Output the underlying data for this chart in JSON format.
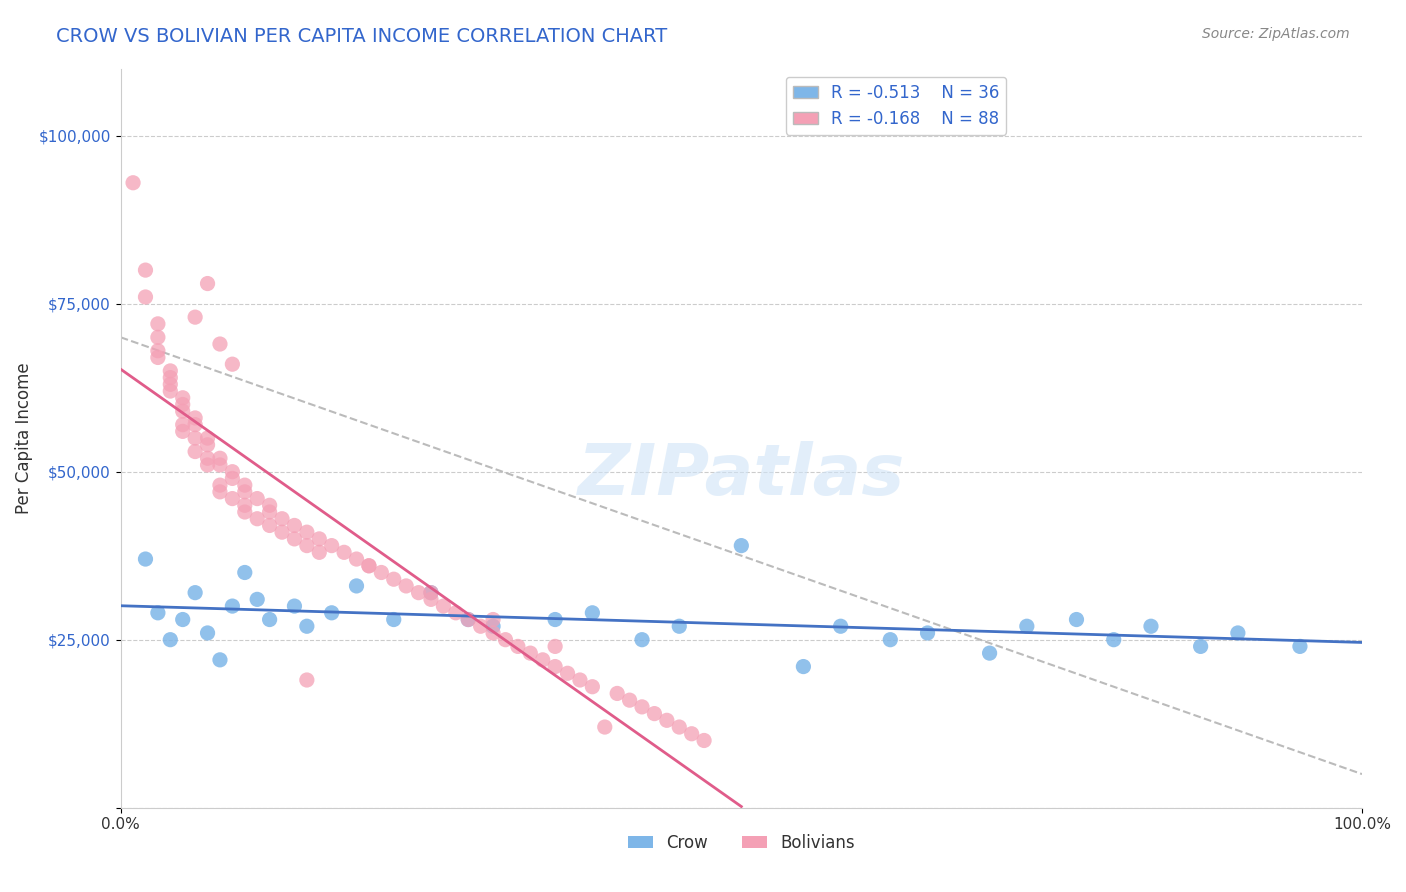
{
  "title": "CROW VS BOLIVIAN PER CAPITA INCOME CORRELATION CHART",
  "source_text": "Source: ZipAtlas.com",
  "xlabel": "",
  "ylabel": "Per Capita Income",
  "watermark": "ZIPatlas",
  "xlim": [
    0.0,
    100.0
  ],
  "ylim": [
    0,
    110000
  ],
  "yticks": [
    0,
    25000,
    50000,
    75000,
    100000
  ],
  "ytick_labels": [
    "",
    "$25,000",
    "$50,000",
    "$75,000",
    "$100,000"
  ],
  "xtick_labels": [
    "0.0%",
    "100.0%"
  ],
  "crow_color": "#7EB6E8",
  "bolivian_color": "#F4A0B5",
  "crow_line_color": "#4472C4",
  "bolivian_line_color": "#E05C8A",
  "dashed_line_color": "#BBBBBB",
  "legend_R_crow": "R = -0.513",
  "legend_N_crow": "N = 36",
  "legend_R_bolivian": "R = -0.168",
  "legend_N_bolivian": "N = 88",
  "crow_R": -0.513,
  "crow_N": 36,
  "bolivian_R": -0.168,
  "bolivian_N": 88,
  "crow_scatter_x": [
    2,
    3,
    4,
    5,
    6,
    7,
    8,
    9,
    10,
    11,
    12,
    14,
    15,
    17,
    19,
    22,
    25,
    28,
    30,
    35,
    38,
    42,
    45,
    50,
    55,
    58,
    62,
    65,
    70,
    73,
    77,
    80,
    83,
    87,
    90,
    95
  ],
  "crow_scatter_y": [
    37000,
    29000,
    25000,
    28000,
    32000,
    26000,
    22000,
    30000,
    35000,
    31000,
    28000,
    30000,
    27000,
    29000,
    33000,
    28000,
    32000,
    28000,
    27000,
    28000,
    29000,
    25000,
    27000,
    39000,
    21000,
    27000,
    25000,
    26000,
    23000,
    27000,
    28000,
    25000,
    27000,
    24000,
    26000,
    24000
  ],
  "bolivian_scatter_x": [
    1,
    2,
    2,
    3,
    3,
    4,
    4,
    5,
    5,
    6,
    6,
    7,
    7,
    8,
    8,
    9,
    9,
    10,
    10,
    11,
    12,
    12,
    13,
    14,
    15,
    16,
    17,
    18,
    19,
    20,
    21,
    22,
    23,
    24,
    25,
    26,
    27,
    28,
    29,
    30,
    31,
    32,
    33,
    34,
    35,
    36,
    37,
    38,
    39,
    40,
    41,
    42,
    43,
    44,
    45,
    46,
    47,
    7,
    6,
    8,
    9,
    5,
    4,
    3,
    6,
    7,
    8,
    10,
    11,
    12,
    5,
    6,
    4,
    3,
    7,
    8,
    9,
    10,
    13,
    14,
    15,
    16,
    5,
    20,
    25,
    30,
    35,
    15
  ],
  "bolivian_scatter_y": [
    93000,
    80000,
    76000,
    72000,
    68000,
    65000,
    63000,
    61000,
    60000,
    58000,
    57000,
    55000,
    54000,
    52000,
    51000,
    50000,
    49000,
    48000,
    47000,
    46000,
    45000,
    44000,
    43000,
    42000,
    41000,
    40000,
    39000,
    38000,
    37000,
    36000,
    35000,
    34000,
    33000,
    32000,
    31000,
    30000,
    29000,
    28000,
    27000,
    26000,
    25000,
    24000,
    23000,
    22000,
    21000,
    20000,
    19000,
    18000,
    12000,
    17000,
    16000,
    15000,
    14000,
    13000,
    12000,
    11000,
    10000,
    78000,
    73000,
    69000,
    66000,
    56000,
    62000,
    70000,
    53000,
    51000,
    47000,
    45000,
    43000,
    42000,
    59000,
    55000,
    64000,
    67000,
    52000,
    48000,
    46000,
    44000,
    41000,
    40000,
    39000,
    38000,
    57000,
    36000,
    32000,
    28000,
    24000,
    19000
  ]
}
